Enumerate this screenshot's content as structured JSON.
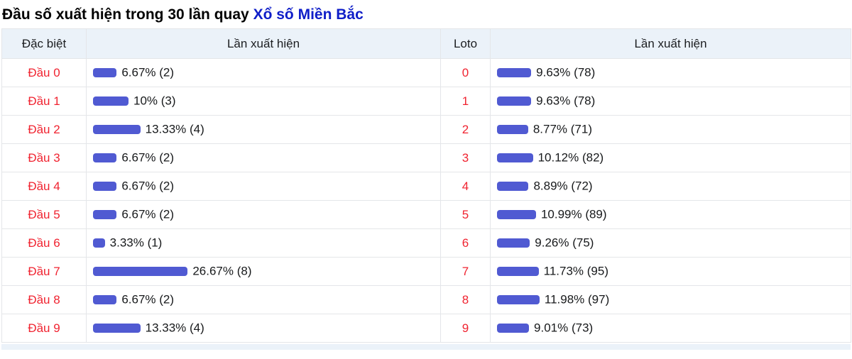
{
  "title": {
    "text": "Đầu số xuất hiện trong 30 lần quay",
    "link_text": "Xổ số Miền Bắc"
  },
  "colors": {
    "accent_bar": "#505ad2",
    "red_label": "#f02330",
    "link_blue": "#0f1ec8",
    "header_bg": "#ebf2f9"
  },
  "table": {
    "headers": [
      "Đặc biệt",
      "Lần xuất hiện",
      "Loto",
      "Lần xuất hiện"
    ],
    "rows": [
      {
        "dac_biet": "Đầu 0",
        "db_pct": 6.67,
        "db_text": "6.67% (2)",
        "loto": "0",
        "loto_pct": 9.63,
        "loto_text": "9.63% (78)"
      },
      {
        "dac_biet": "Đầu 1",
        "db_pct": 10,
        "db_text": "10% (3)",
        "loto": "1",
        "loto_pct": 9.63,
        "loto_text": "9.63% (78)"
      },
      {
        "dac_biet": "Đầu 2",
        "db_pct": 13.33,
        "db_text": "13.33% (4)",
        "loto": "2",
        "loto_pct": 8.77,
        "loto_text": "8.77% (71)"
      },
      {
        "dac_biet": "Đầu 3",
        "db_pct": 6.67,
        "db_text": "6.67% (2)",
        "loto": "3",
        "loto_pct": 10.12,
        "loto_text": "10.12% (82)"
      },
      {
        "dac_biet": "Đầu 4",
        "db_pct": 6.67,
        "db_text": "6.67% (2)",
        "loto": "4",
        "loto_pct": 8.89,
        "loto_text": "8.89% (72)"
      },
      {
        "dac_biet": "Đầu 5",
        "db_pct": 6.67,
        "db_text": "6.67% (2)",
        "loto": "5",
        "loto_pct": 10.99,
        "loto_text": "10.99% (89)"
      },
      {
        "dac_biet": "Đầu 6",
        "db_pct": 3.33,
        "db_text": "3.33% (1)",
        "loto": "6",
        "loto_pct": 9.26,
        "loto_text": "9.26% (75)"
      },
      {
        "dac_biet": "Đầu 7",
        "db_pct": 26.67,
        "db_text": "26.67% (8)",
        "loto": "7",
        "loto_pct": 11.73,
        "loto_text": "11.73% (95)"
      },
      {
        "dac_biet": "Đầu 8",
        "db_pct": 6.67,
        "db_text": "6.67% (2)",
        "loto": "8",
        "loto_pct": 11.98,
        "loto_text": "11.98% (97)"
      },
      {
        "dac_biet": "Đầu 9",
        "db_pct": 13.33,
        "db_text": "13.33% (4)",
        "loto": "9",
        "loto_pct": 9.01,
        "loto_text": "9.01% (73)"
      }
    ]
  },
  "chart_data": [
    {
      "type": "bar",
      "title": "Đặc biệt - Lần xuất hiện (trong 30 lần quay)",
      "categories": [
        "Đầu 0",
        "Đầu 1",
        "Đầu 2",
        "Đầu 3",
        "Đầu 4",
        "Đầu 5",
        "Đầu 6",
        "Đầu 7",
        "Đầu 8",
        "Đầu 9"
      ],
      "values": [
        6.67,
        10,
        13.33,
        6.67,
        6.67,
        6.67,
        3.33,
        26.67,
        6.67,
        13.33
      ],
      "counts": [
        2,
        3,
        4,
        2,
        2,
        2,
        1,
        8,
        2,
        4
      ],
      "unit": "percent",
      "orientation": "horizontal",
      "bar_color": "#505ad2"
    },
    {
      "type": "bar",
      "title": "Loto - Lần xuất hiện (trong 30 lần quay)",
      "categories": [
        "0",
        "1",
        "2",
        "3",
        "4",
        "5",
        "6",
        "7",
        "8",
        "9"
      ],
      "values": [
        9.63,
        9.63,
        8.77,
        10.12,
        8.89,
        10.99,
        9.26,
        11.73,
        11.98,
        9.01
      ],
      "counts": [
        78,
        78,
        71,
        82,
        72,
        89,
        75,
        95,
        97,
        73
      ],
      "unit": "percent",
      "orientation": "horizontal",
      "bar_color": "#505ad2"
    }
  ]
}
